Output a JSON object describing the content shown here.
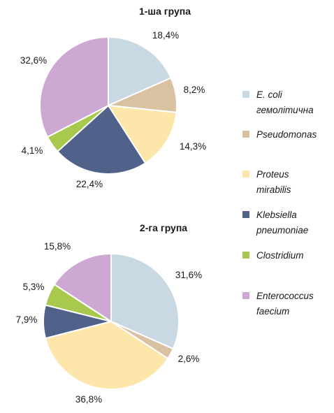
{
  "chart_data": [
    {
      "type": "pie",
      "title": "1-ша група",
      "categories": [
        "E. coli гемолітична",
        "Pseudomonas",
        "Proteus mirabilis",
        "Klebsiella pneumoniae",
        "Clostridium",
        "Enterococcus faecium"
      ],
      "values": [
        18.4,
        8.2,
        14.3,
        22.4,
        4.1,
        32.6
      ],
      "labels": [
        "18,4%",
        "8,2%",
        "14,3%",
        "22,4%",
        "4,1%",
        "32,6%"
      ]
    },
    {
      "type": "pie",
      "title": "2-га група",
      "categories": [
        "E. coli гемолітична",
        "Pseudomonas",
        "Proteus mirabilis",
        "Klebsiella pneumoniae",
        "Clostridium",
        "Enterococcus faecium"
      ],
      "values": [
        31.6,
        2.6,
        36.8,
        7.9,
        5.3,
        15.8
      ],
      "labels": [
        "31,6%",
        "2,6%",
        "36,8%",
        "7,9%",
        "5,3%",
        "15,8%"
      ]
    }
  ],
  "legend": {
    "placement": "right",
    "items": [
      {
        "lines": [
          "E. coli",
          "гемолітична"
        ],
        "color": "#c9d9e3"
      },
      {
        "lines": [
          "Pseudomonas"
        ],
        "color": "#d9c2a2"
      },
      {
        "lines": [
          "Proteus",
          "mirabilis"
        ],
        "color": "#fde6a9"
      },
      {
        "lines": [
          "Klebsiella",
          "pneumoniae"
        ],
        "color": "#506289"
      },
      {
        "lines": [
          "Clostridium"
        ],
        "color": "#a8c94e"
      },
      {
        "lines": [
          "Enterococcus",
          "faecium"
        ],
        "color": "#cda8d2"
      }
    ]
  }
}
